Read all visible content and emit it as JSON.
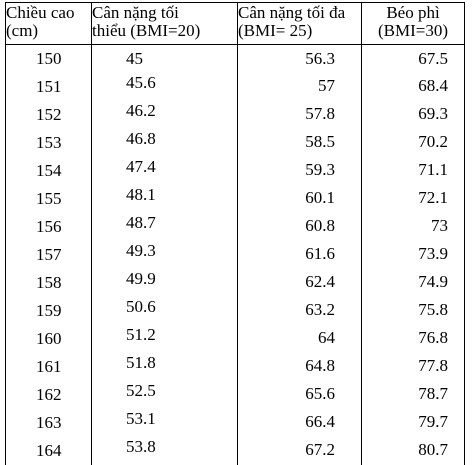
{
  "headers": [
    [
      "Chiều cao",
      "(cm)"
    ],
    [
      "Cân nặng tối",
      "thiểu (BMI=20)"
    ],
    [
      "Cân nặng tối đa",
      "(BMI= 25)"
    ],
    [
      "Béo phì",
      "(BMI=30)"
    ]
  ],
  "rows": [
    [
      "150",
      "45",
      "56.3",
      "67.5"
    ],
    [
      "151",
      "45.6",
      "57",
      "68.4"
    ],
    [
      "152",
      "46.2",
      "57.8",
      "69.3"
    ],
    [
      "153",
      "46.8",
      "58.5",
      "70.2"
    ],
    [
      "154",
      "47.4",
      "59.3",
      "71.1"
    ],
    [
      "155",
      "48.1",
      "60.1",
      "72.1"
    ],
    [
      "156",
      "48.7",
      "60.8",
      "73"
    ],
    [
      "157",
      "49.3",
      "61.6",
      "73.9"
    ],
    [
      "158",
      "49.9",
      "62.4",
      "74.9"
    ],
    [
      "159",
      "50.6",
      "63.2",
      "75.8"
    ],
    [
      "160",
      "51.2",
      "64",
      "76.8"
    ],
    [
      "161",
      "51.8",
      "64.8",
      "77.8"
    ],
    [
      "162",
      "52.5",
      "65.6",
      "78.7"
    ],
    [
      "163",
      "53.1",
      "66.4",
      "79.7"
    ],
    [
      "164",
      "53.8",
      "67.2",
      "80.7"
    ]
  ]
}
